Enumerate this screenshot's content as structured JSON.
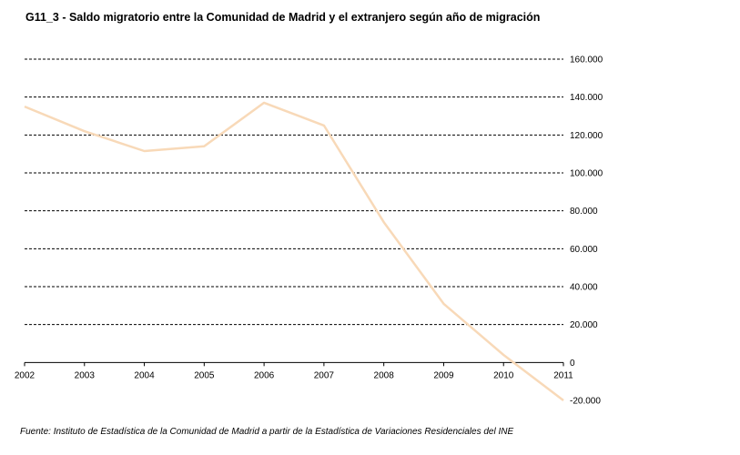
{
  "chart_data": {
    "type": "line",
    "title": "G11_3 - Saldo migratorio entre la Comunidad de Madrid y el extranjero según año de migración",
    "source": "Fuente: Instituto de Estadística de la Comunidad de Madrid a partir de la Estadística de Variaciones Residenciales del INE",
    "x": [
      "2002",
      "2003",
      "2004",
      "2005",
      "2006",
      "2007",
      "2008",
      "2009",
      "2010",
      "2011"
    ],
    "series": [
      {
        "values": [
          135000,
          122000,
          111500,
          114000,
          137000,
          125000,
          74000,
          31000,
          4000,
          -20000
        ]
      }
    ],
    "ylim": [
      -20000,
      160000
    ],
    "yticks": [
      -20000,
      0,
      20000,
      40000,
      60000,
      80000,
      100000,
      120000,
      140000,
      160000
    ],
    "ytick_labels": [
      "-20.000",
      "0",
      "20.000",
      "40.000",
      "60.000",
      "80.000",
      "100.000",
      "120.000",
      "140.000",
      "160.000"
    ],
    "grid": true,
    "grid_style": "dashed",
    "line_color": "#f8d9b8",
    "grid_color": "#000000"
  }
}
